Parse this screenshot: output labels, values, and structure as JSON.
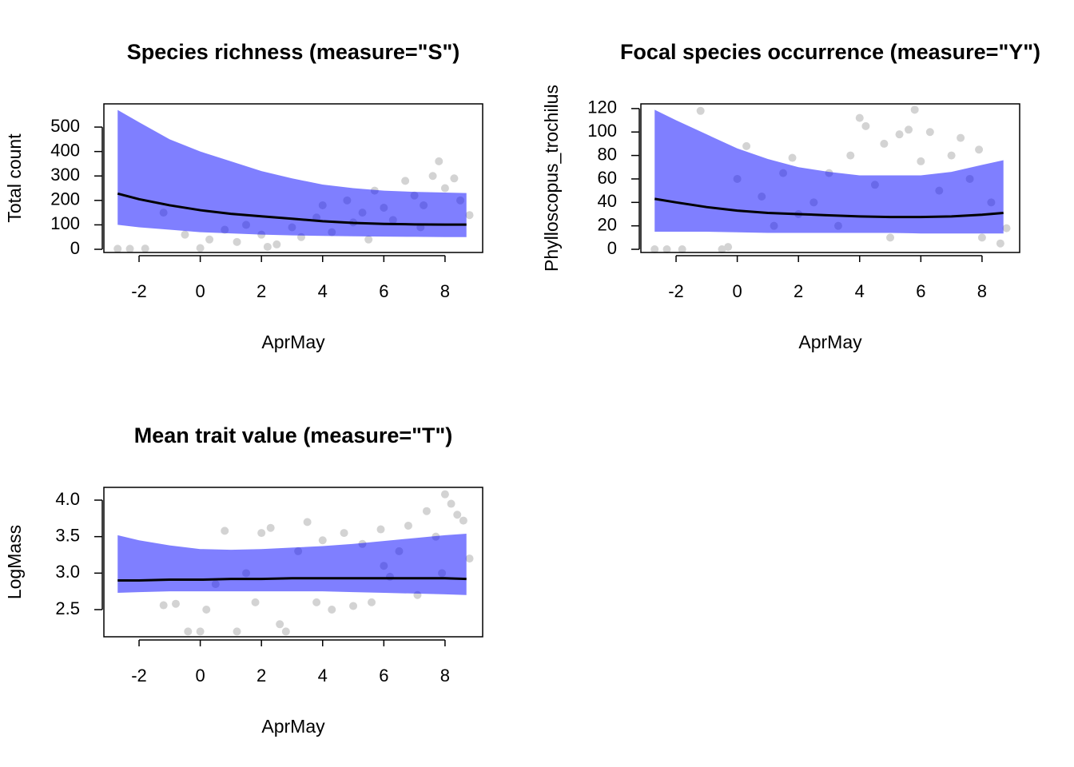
{
  "chart_data": [
    {
      "type": "scatter",
      "title": "Species richness (measure=\"S\")",
      "xlabel": "AprMay",
      "ylabel": "Total count",
      "xlim": [
        -3.15,
        9.23
      ],
      "xticks": [
        -2,
        0,
        2,
        4,
        6,
        8
      ],
      "ylim": [
        -13,
        595
      ],
      "yticks": [
        0,
        100,
        200,
        300,
        400,
        500
      ],
      "points": {
        "color": "#d3d3d3",
        "x": [
          -2.7,
          -2.3,
          -1.8,
          -1.2,
          -0.5,
          0,
          0.3,
          0.8,
          1.2,
          1.5,
          2,
          2.5,
          3,
          3.3,
          3.8,
          4,
          4.3,
          4.8,
          5,
          5.3,
          5.7,
          6,
          6.3,
          6.7,
          7,
          7.3,
          7.6,
          7.8,
          8,
          8.3,
          8.5,
          8.8,
          2.2,
          5.5,
          7.2
        ],
        "y": [
          2,
          2,
          3,
          150,
          60,
          5,
          40,
          80,
          30,
          100,
          60,
          20,
          90,
          50,
          130,
          180,
          70,
          200,
          110,
          150,
          240,
          170,
          120,
          280,
          220,
          180,
          300,
          360,
          250,
          290,
          200,
          140,
          10,
          40,
          90
        ]
      },
      "band": {
        "color": "#0000ff",
        "opacity": 0.5,
        "x": [
          -2.7,
          -2,
          -1,
          0,
          1,
          2,
          3,
          4,
          5,
          6,
          7,
          8,
          8.7
        ],
        "upper": [
          570,
          520,
          450,
          400,
          360,
          320,
          290,
          265,
          250,
          240,
          235,
          232,
          230
        ],
        "lower": [
          100,
          90,
          80,
          70,
          65,
          60,
          57,
          55,
          53,
          52,
          51,
          50,
          50
        ]
      },
      "fit": {
        "color": "#000000",
        "x": [
          -2.7,
          -2,
          -1,
          0,
          1,
          2,
          3,
          4,
          5,
          6,
          7,
          8,
          8.7
        ],
        "y": [
          228,
          205,
          180,
          160,
          145,
          135,
          125,
          115,
          108,
          104,
          102,
          101,
          101
        ]
      }
    },
    {
      "type": "scatter",
      "title": "Focal species occurrence (measure=\"Y\")",
      "xlabel": "AprMay",
      "ylabel": "Phylloscopus_trochilus",
      "xlim": [
        -3.15,
        9.23
      ],
      "xticks": [
        -2,
        0,
        2,
        4,
        6,
        8
      ],
      "ylim": [
        -2.7,
        124
      ],
      "yticks": [
        0,
        20,
        40,
        60,
        80,
        100,
        120
      ],
      "points": {
        "color": "#d3d3d3",
        "x": [
          -2.7,
          -2.3,
          -1.8,
          -1.2,
          -0.5,
          -0.3,
          0,
          0.3,
          0.8,
          1.2,
          1.5,
          1.8,
          2,
          2.5,
          3,
          3.3,
          3.7,
          4,
          4.2,
          4.5,
          4.8,
          5,
          5.3,
          5.6,
          5.8,
          6,
          6.3,
          6.6,
          7,
          7.3,
          7.6,
          7.9,
          8,
          8.3,
          8.6,
          8.8
        ],
        "y": [
          0,
          0,
          0,
          118,
          0,
          2,
          60,
          88,
          45,
          20,
          65,
          78,
          30,
          40,
          65,
          20,
          80,
          112,
          105,
          55,
          90,
          10,
          98,
          102,
          119,
          75,
          100,
          50,
          80,
          95,
          60,
          85,
          10,
          40,
          5,
          18
        ]
      },
      "band": {
        "color": "#0000ff",
        "opacity": 0.5,
        "x": [
          -2.7,
          -2,
          -1,
          0,
          1,
          2,
          3,
          4,
          5,
          6,
          7,
          8,
          8.7
        ],
        "upper": [
          119,
          110,
          98,
          86,
          77,
          70,
          66,
          63,
          63,
          63,
          66,
          72,
          76
        ],
        "lower": [
          15,
          15,
          15,
          14.5,
          14,
          14,
          14,
          14,
          14,
          13.5,
          13.5,
          13.5,
          13.5
        ]
      },
      "fit": {
        "color": "#000000",
        "x": [
          -2.7,
          -2,
          -1,
          0,
          1,
          2,
          3,
          4,
          5,
          6,
          7,
          8,
          8.7
        ],
        "y": [
          43,
          40,
          36,
          33,
          31,
          30,
          29,
          28,
          27.5,
          27.5,
          28,
          29.5,
          31
        ]
      }
    },
    {
      "type": "scatter",
      "title": "Mean trait value (measure=\"T\")",
      "xlabel": "AprMay",
      "ylabel": "LogMass",
      "xlim": [
        -3.15,
        9.23
      ],
      "xticks": [
        -2,
        0,
        2,
        4,
        6,
        8
      ],
      "ylim": [
        2.128,
        4.175
      ],
      "yticks": [
        2.5,
        {
          "value": 3,
          "label": "3.0"
        },
        3.5,
        {
          "value": 4,
          "label": "4.0"
        }
      ],
      "points": {
        "color": "#d3d3d3",
        "x": [
          -1.2,
          -0.8,
          -0.4,
          0,
          0.2,
          0.5,
          0.8,
          1.2,
          1.5,
          1.8,
          2,
          2.3,
          2.6,
          2.8,
          3.2,
          3.5,
          3.8,
          4,
          4.3,
          4.7,
          5,
          5.3,
          5.6,
          5.9,
          6.2,
          6.5,
          6.8,
          7.1,
          7.4,
          7.7,
          8,
          8.2,
          8.4,
          8.6,
          8.8,
          7.9,
          6
        ],
        "y": [
          2.56,
          2.58,
          2.2,
          2.2,
          2.5,
          2.85,
          3.58,
          2.2,
          3.0,
          2.6,
          3.55,
          3.62,
          2.3,
          2.2,
          3.3,
          3.7,
          2.6,
          3.45,
          2.5,
          3.55,
          2.55,
          3.4,
          2.6,
          3.6,
          2.95,
          3.3,
          3.65,
          2.7,
          3.85,
          3.5,
          4.08,
          3.95,
          3.8,
          3.72,
          3.2,
          3.0,
          3.1
        ]
      },
      "band": {
        "color": "#0000ff",
        "opacity": 0.5,
        "x": [
          -2.7,
          -2,
          -1,
          0,
          1,
          2,
          3,
          4,
          5,
          6,
          7,
          8,
          8.7
        ],
        "upper": [
          3.52,
          3.45,
          3.38,
          3.33,
          3.32,
          3.33,
          3.35,
          3.37,
          3.4,
          3.44,
          3.48,
          3.52,
          3.54
        ],
        "lower": [
          2.73,
          2.74,
          2.75,
          2.75,
          2.75,
          2.75,
          2.75,
          2.75,
          2.74,
          2.73,
          2.72,
          2.71,
          2.7
        ]
      },
      "fit": {
        "color": "#000000",
        "x": [
          -2.7,
          -2,
          -1,
          0,
          1,
          2,
          3,
          4,
          5,
          6,
          7,
          8,
          8.7
        ],
        "y": [
          2.9,
          2.9,
          2.91,
          2.91,
          2.92,
          2.92,
          2.93,
          2.93,
          2.93,
          2.93,
          2.93,
          2.93,
          2.92
        ]
      }
    }
  ]
}
